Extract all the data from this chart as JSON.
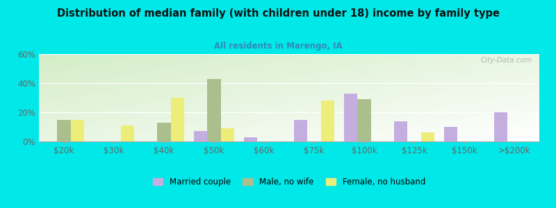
{
  "title": "Distribution of median family (with children under 18) income by family type",
  "subtitle": "All residents in Marengo, IA",
  "categories": [
    "$20k",
    "$30k",
    "$40k",
    "$50k",
    "$60k",
    "$75k",
    "$100k",
    "$125k",
    "$150k",
    ">$200k"
  ],
  "married_couple": [
    0,
    0,
    0,
    7,
    3,
    15,
    33,
    14,
    10,
    20
  ],
  "male_no_wife": [
    15,
    0,
    13,
    43,
    0,
    0,
    29,
    0,
    0,
    0
  ],
  "female_no_husband": [
    15,
    11,
    30,
    9,
    0,
    28,
    0,
    6,
    0,
    0
  ],
  "married_color": "#c4aee0",
  "male_color": "#aabf8c",
  "female_color": "#eded7a",
  "background_color": "#00e8e8",
  "tick_color": "#666666",
  "subtitle_color": "#3388bb",
  "title_color": "#111111",
  "watermark": "City-Data.com",
  "ylim": [
    0,
    60
  ],
  "yticks": [
    0,
    20,
    40,
    60
  ],
  "bar_width": 0.27
}
